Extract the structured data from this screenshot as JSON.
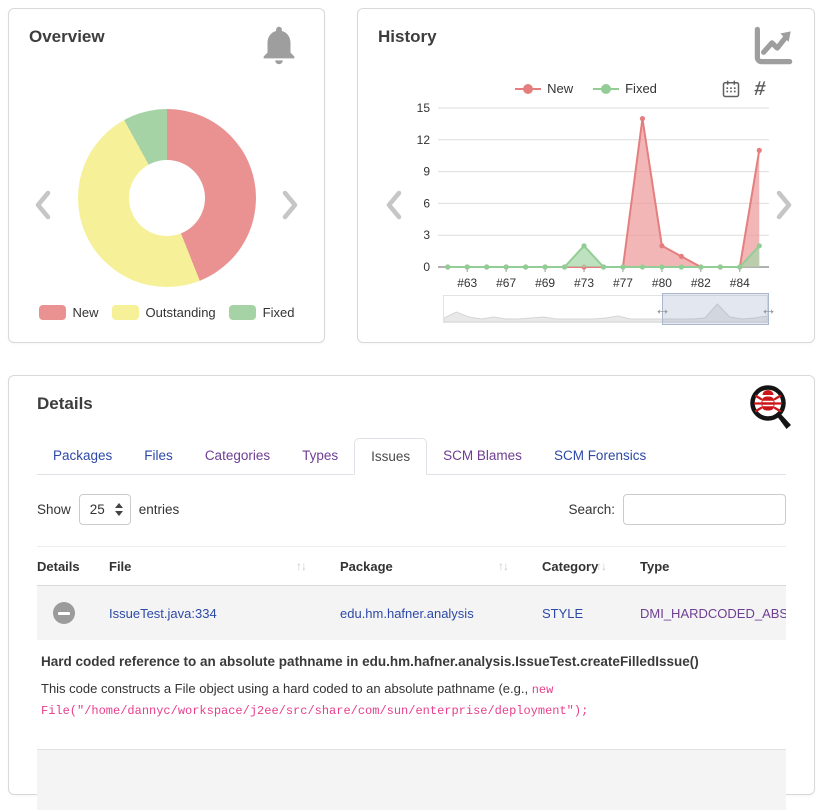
{
  "icons": {
    "sort_glyph": "↑↓",
    "slider_handle_glyph": "↔",
    "hash_glyph": "#"
  },
  "overview_card": {
    "title": "Overview"
  },
  "history_card": {
    "title": "History"
  },
  "details_card": {
    "title": "Details",
    "tabs": [
      {
        "label": "Packages",
        "state": "link"
      },
      {
        "label": "Files",
        "state": "link"
      },
      {
        "label": "Categories",
        "state": "visited"
      },
      {
        "label": "Types",
        "state": "visited"
      },
      {
        "label": "Issues",
        "state": "active"
      },
      {
        "label": "SCM Blames",
        "state": "visited"
      },
      {
        "label": "SCM Forensics",
        "state": "link"
      }
    ],
    "length_control": {
      "label_before": "Show",
      "value": "25",
      "label_after": "entries"
    },
    "search": {
      "label": "Search:",
      "value": ""
    },
    "table": {
      "columns": [
        {
          "label": "Details",
          "sortable": false
        },
        {
          "label": "File",
          "sortable": true
        },
        {
          "label": "Package",
          "sortable": true
        },
        {
          "label": "Category",
          "sortable": true
        },
        {
          "label": "Type",
          "sortable": false
        }
      ],
      "rows": [
        {
          "file": "IssueTest.java:334",
          "package": "edu.hm.hafner.analysis",
          "category": "STYLE",
          "type": "DMI_HARDCODED_ABSOLU",
          "expanded": true
        }
      ]
    },
    "expanded_detail": {
      "title": "Hard coded reference to an absolute pathname in edu.hm.hafner.analysis.IssueTest.createFilledIssue()",
      "text": "This code constructs a File object using a hard coded to an absolute pathname (e.g., ",
      "code": "new File(\"/home/dannyc/workspace/j2ee/src/share/com/sun/enterprise/deployment\");"
    }
  },
  "chart_data": [
    {
      "id": "overview-donut",
      "type": "pie",
      "donut": true,
      "title": "Overview",
      "legend_position": "bottom",
      "slices": [
        {
          "label": "New",
          "pct": 44,
          "value_estimate": 11,
          "color": "#EA9191"
        },
        {
          "label": "Outstanding",
          "pct": 48,
          "value_estimate": 12,
          "color": "#F6F098"
        },
        {
          "label": "Fixed",
          "pct": 8,
          "value_estimate": 2,
          "color": "#A5D3A6"
        }
      ]
    },
    {
      "id": "history-trend",
      "type": "area",
      "title": "History",
      "legend_position": "top",
      "x_labels_shown": [
        "#63",
        "#67",
        "#69",
        "#73",
        "#77",
        "#80",
        "#82",
        "#84"
      ],
      "label_point_indices": [
        1,
        3,
        5,
        7,
        9,
        11,
        13,
        15
      ],
      "num_points": 17,
      "series": [
        {
          "name": "New",
          "color": "#E57F7F",
          "fill": "#EF9A9A",
          "values": [
            0,
            0,
            0,
            0,
            0,
            0,
            0,
            0,
            0,
            0,
            14,
            2,
            1,
            0,
            0,
            0,
            11
          ]
        },
        {
          "name": "Fixed",
          "color": "#93CD96",
          "fill": "#A5D6A7",
          "values": [
            0,
            0,
            0,
            0,
            0,
            0,
            0,
            2,
            0,
            0,
            0,
            0,
            0,
            0,
            0,
            0,
            2
          ]
        }
      ],
      "ylim": [
        0,
        15
      ],
      "yticks": [
        0,
        3,
        6,
        9,
        12,
        15
      ],
      "grid": true,
      "datazoom": {
        "selected_pct": [
          67,
          100
        ],
        "profile": [
          2,
          8,
          3,
          1,
          3,
          1,
          1,
          2,
          3,
          1,
          1,
          1,
          1,
          2,
          4,
          1,
          1,
          1,
          1,
          1,
          1,
          2,
          16,
          3,
          1,
          2,
          4
        ]
      }
    }
  ]
}
